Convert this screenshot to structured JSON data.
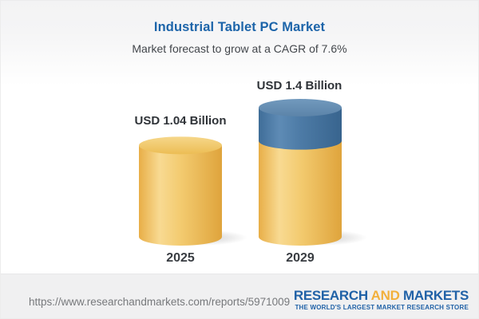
{
  "header": {
    "title": "Industrial Tablet PC Market",
    "subtitle": "Market forecast to grow at a CAGR of 7.6%"
  },
  "chart_data": {
    "type": "bar",
    "style": "3d-cylinder-stacked",
    "title": "Industrial Tablet PC Market",
    "subtitle": "Market forecast to grow at a CAGR of 7.6%",
    "unit": "USD Billion",
    "cagr_pct": 7.6,
    "categories": [
      "2025",
      "2029"
    ],
    "values": [
      1.04,
      1.4
    ],
    "value_labels": [
      "USD 1.04 Billion",
      "USD 1.4 Billion"
    ],
    "series": [
      {
        "name": "base",
        "values": [
          1.04,
          1.04
        ],
        "color": "#f2c96e"
      },
      {
        "name": "growth",
        "values": [
          0,
          0.36
        ],
        "color": "#4a7aa6"
      }
    ],
    "ylim": [
      0,
      1.4
    ],
    "grid": false,
    "legend": false
  },
  "footer": {
    "url": "https://www.researchandmarkets.com/reports/5971009",
    "logo": {
      "part1": "RESEARCH",
      "part2": "AND",
      "part3": "MARKETS",
      "tagline": "THE WORLD'S LARGEST MARKET RESEARCH STORE"
    }
  },
  "colors": {
    "title_blue": "#1c64a9",
    "bar_gold": "#f2c96e",
    "bar_blue": "#4a7aa6",
    "logo_navy": "#2162a7",
    "logo_gold": "#f2b03c",
    "footer_bg": "#f0f0f1",
    "url_gray": "#77797c"
  }
}
